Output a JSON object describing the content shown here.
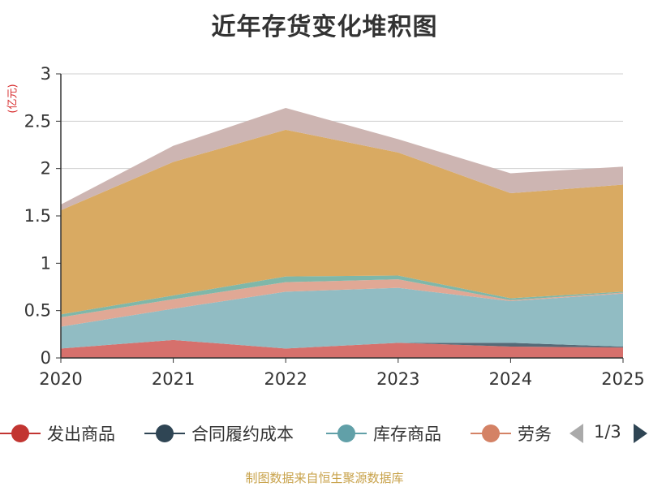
{
  "chart_data": {
    "type": "area",
    "stacked": true,
    "title": "近年存货变化堆积图",
    "ylabel": "(亿元)",
    "x": [
      "2020",
      "2021",
      "2022",
      "2023",
      "2024",
      "2025"
    ],
    "ylim": [
      0,
      3
    ],
    "yticks": [
      "0",
      "0.5",
      "1",
      "1.5",
      "2",
      "2.5",
      "3"
    ],
    "grid": true,
    "series": [
      {
        "name": "发出商品",
        "color": "#d6706c",
        "values": [
          0.1,
          0.19,
          0.1,
          0.16,
          0.12,
          0.11
        ]
      },
      {
        "name": "合同履约成本",
        "color": "#556a77",
        "values": [
          0.0,
          0.0,
          0.0,
          0.0,
          0.04,
          0.01
        ]
      },
      {
        "name": "库存商品",
        "color": "#91bcc3",
        "values": [
          0.23,
          0.33,
          0.6,
          0.58,
          0.44,
          0.56
        ]
      },
      {
        "name": "劳务",
        "color": "#e0a895",
        "values": [
          0.1,
          0.1,
          0.1,
          0.09,
          0.01,
          0.01
        ]
      },
      {
        "color": "#7fb7a9",
        "values": [
          0.03,
          0.04,
          0.06,
          0.04,
          0.02,
          0.01
        ]
      },
      {
        "color": "#d9aa62",
        "values": [
          1.1,
          1.41,
          1.55,
          1.3,
          1.11,
          1.13
        ]
      },
      {
        "color": "#cdb5b2",
        "values": [
          0.06,
          0.17,
          0.23,
          0.14,
          0.21,
          0.19
        ]
      }
    ]
  },
  "legend": {
    "items": [
      {
        "label": "发出商品",
        "color": "#c23531"
      },
      {
        "label": "合同履约成本",
        "color": "#2f4554"
      },
      {
        "label": "库存商品",
        "color": "#61a0a8"
      },
      {
        "label": "劳务",
        "color": "#d48265"
      }
    ],
    "page": "1/3"
  },
  "source": "制图数据来自恒生聚源数据库"
}
